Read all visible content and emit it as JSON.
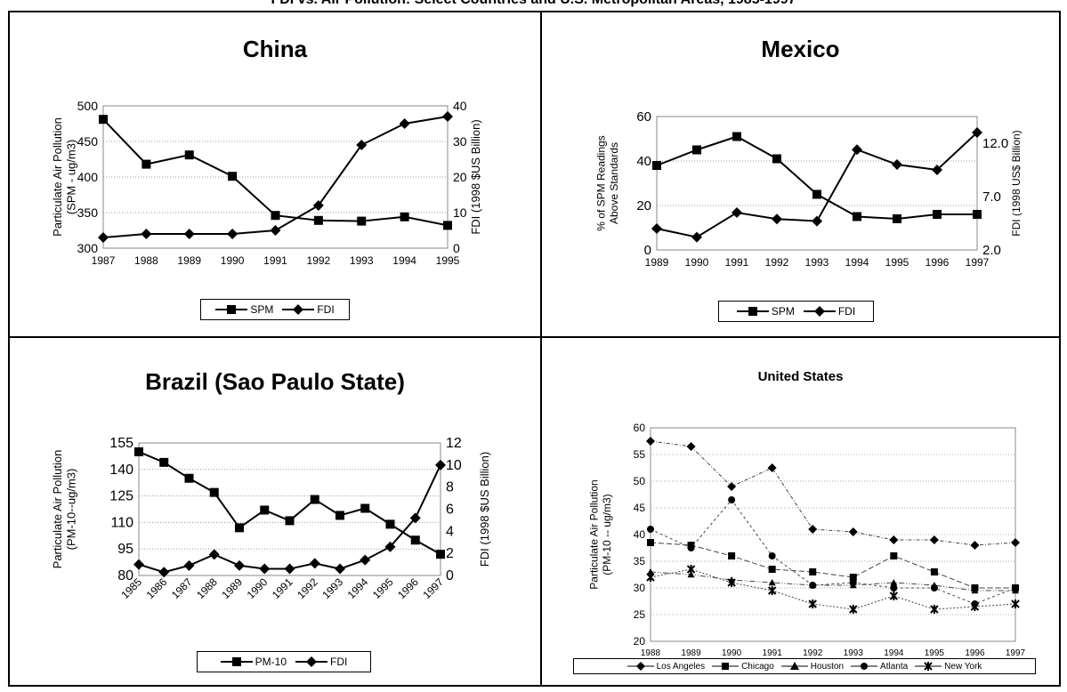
{
  "page_title": "FDI vs. Air Pollution: Select Countries and U.S. Metropolitan Areas, 1985-1997",
  "chart_data": [
    {
      "id": "china",
      "type": "line",
      "title": "China",
      "x": [
        "1987",
        "1988",
        "1989",
        "1990",
        "1991",
        "1992",
        "1993",
        "1994",
        "1995"
      ],
      "ylabel": "Particulate Air Pollution (SPM - ug/m3)",
      "ylim": [
        300,
        500
      ],
      "yticks": [
        "300",
        "350",
        "400",
        "450",
        "500"
      ],
      "y2label": "FDI (1998 $US Billion)",
      "y2lim": [
        0,
        40
      ],
      "y2ticks": [
        "0",
        "10",
        "20",
        "30",
        "40"
      ],
      "series": [
        {
          "name": "SPM",
          "axis": "left",
          "marker": "square",
          "values": [
            481,
            418,
            431,
            401,
            346,
            339,
            338,
            344,
            332
          ]
        },
        {
          "name": "FDI",
          "axis": "right",
          "marker": "diamond",
          "values": [
            3,
            4,
            4,
            4,
            5,
            12,
            29,
            35,
            37
          ]
        }
      ],
      "legend": "bottom"
    },
    {
      "id": "mexico",
      "type": "line",
      "title": "Mexico",
      "x": [
        "1989",
        "1990",
        "1991",
        "1992",
        "1993",
        "1994",
        "1995",
        "1996",
        "1997"
      ],
      "ylabel": "% of SPM Readings Above Standards",
      "ylim": [
        0,
        60
      ],
      "yticks": [
        "0",
        "20",
        "40",
        "60"
      ],
      "y2label": "FDI (1998 US$ Billion)",
      "y2lim": [
        2,
        14.5
      ],
      "y2ticks": [
        "2.0",
        "7.0",
        "12.0"
      ],
      "series": [
        {
          "name": "SPM",
          "axis": "left",
          "marker": "square",
          "values": [
            38,
            45,
            51,
            41,
            25,
            15,
            14,
            16,
            16
          ]
        },
        {
          "name": "FDI",
          "axis": "right",
          "marker": "diamond",
          "values": [
            4,
            3.2,
            5.5,
            4.9,
            4.7,
            11.4,
            10,
            9.5,
            13
          ]
        }
      ],
      "legend": "bottom"
    },
    {
      "id": "brazil",
      "type": "line",
      "title": "Brazil (Sao Paulo State)",
      "x": [
        "1985",
        "1986",
        "1987",
        "1988",
        "1989",
        "1990",
        "1991",
        "1992",
        "1993",
        "1994",
        "1995",
        "1996",
        "1997"
      ],
      "ylabel": "Particulate Air Pollution (PM-10--ug/m3)",
      "ylim": [
        80,
        155
      ],
      "yticks": [
        "80",
        "95",
        "110",
        "125",
        "140",
        "155"
      ],
      "y2label": "FDI (1998 $US Billion)",
      "y2lim": [
        0,
        12
      ],
      "y2ticks": [
        "0",
        "2",
        "4",
        "6",
        "8",
        "10",
        "12"
      ],
      "series": [
        {
          "name": "PM-10",
          "axis": "left",
          "marker": "square",
          "values": [
            150,
            144,
            135,
            127,
            107,
            117,
            111,
            123,
            114,
            118,
            109,
            100,
            92
          ]
        },
        {
          "name": "FDI",
          "axis": "right",
          "marker": "diamond",
          "values": [
            1,
            0.3,
            0.9,
            1.9,
            0.9,
            0.6,
            0.6,
            1.1,
            0.6,
            1.4,
            2.6,
            5.2,
            10
          ]
        }
      ],
      "legend": "bottom"
    },
    {
      "id": "us",
      "type": "line",
      "title": "United States",
      "x": [
        "1988",
        "1989",
        "1990",
        "1991",
        "1992",
        "1993",
        "1994",
        "1995",
        "1996",
        "1997"
      ],
      "ylabel": "Particulate Air Pollution (PM-10 -- ug/m3)",
      "ylim": [
        20,
        60
      ],
      "yticks": [
        "20",
        "25",
        "30",
        "35",
        "40",
        "45",
        "50",
        "55",
        "60"
      ],
      "series": [
        {
          "name": "Los Angeles",
          "marker": "diamond",
          "values": [
            57.5,
            56.5,
            49,
            52.5,
            41,
            40.5,
            39,
            39,
            38,
            38.5
          ]
        },
        {
          "name": "Chicago",
          "marker": "square",
          "values": [
            38.5,
            38,
            36,
            33.5,
            33,
            32,
            36,
            33,
            30,
            30
          ]
        },
        {
          "name": "Houston",
          "marker": "triangle",
          "values": [
            33,
            32.5,
            31.5,
            31,
            30.5,
            30.5,
            31,
            30.5,
            29.5,
            29.5
          ]
        },
        {
          "name": "Atlanta",
          "marker": "circle",
          "values": [
            41,
            37.5,
            46.5,
            36,
            30.5,
            31,
            30,
            30,
            27,
            30
          ]
        },
        {
          "name": "New York",
          "marker": "star",
          "values": [
            32,
            33.5,
            31,
            29.5,
            27,
            26,
            28.5,
            26,
            26.5,
            27
          ]
        }
      ],
      "legend": "bottom"
    }
  ]
}
